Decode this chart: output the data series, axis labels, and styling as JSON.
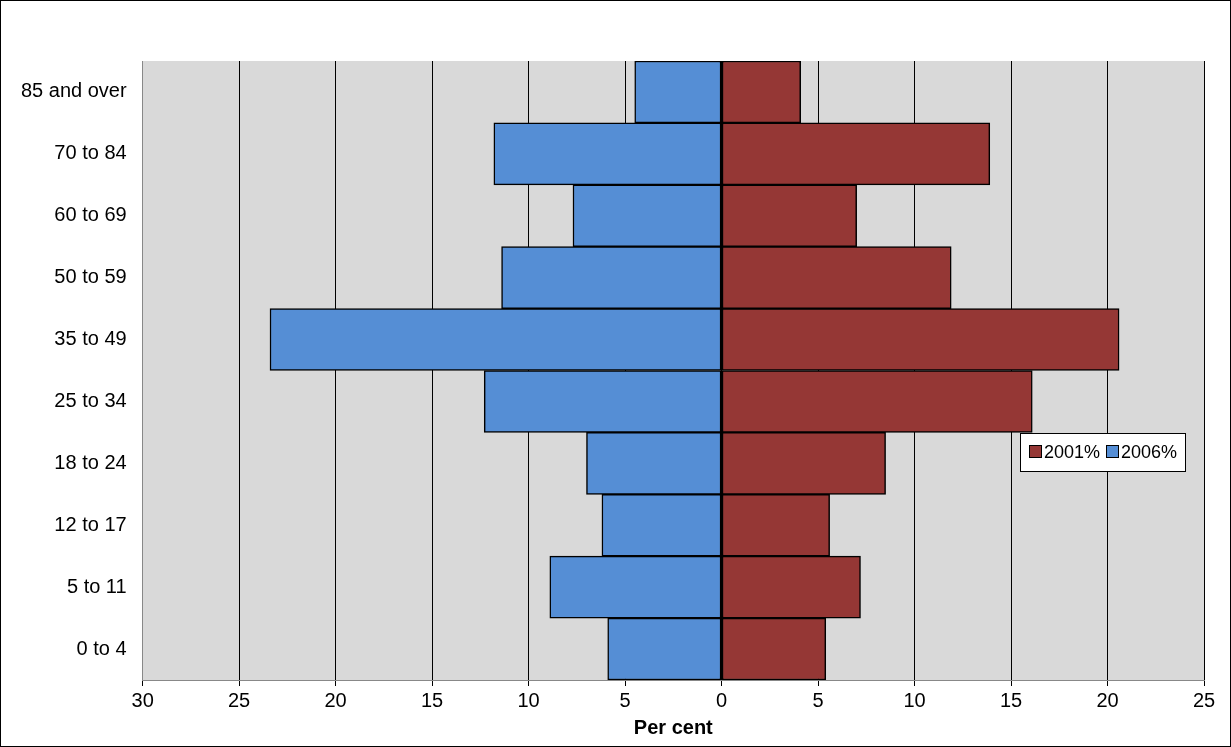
{
  "chart_data": {
    "type": "bar",
    "orientation": "horizontal",
    "stacked": true,
    "xlabel": "Per cent",
    "categories": [
      "85 and over",
      "70 to 84",
      "60 to 69",
      "50 to 59",
      "35 to 49",
      "25 to 34",
      "18 to 24",
      "12 to 17",
      "5 to 11",
      "0 to 4"
    ],
    "series": [
      {
        "name": "2001%",
        "color": "#953735",
        "values": [
          4.1,
          13.9,
          7.0,
          11.9,
          20.6,
          16.1,
          8.5,
          5.6,
          7.2,
          5.4
        ]
      },
      {
        "name": "2006%",
        "color": "#558ed5",
        "values": [
          -4.5,
          -11.8,
          -7.7,
          -11.4,
          -23.4,
          -12.3,
          -7.0,
          -6.2,
          -8.9,
          -5.9
        ]
      }
    ],
    "xlim": [
      -30,
      25
    ],
    "xticks": [
      {
        "value": -30,
        "label": "30"
      },
      {
        "value": -25,
        "label": "25"
      },
      {
        "value": -20,
        "label": "20"
      },
      {
        "value": -15,
        "label": "15"
      },
      {
        "value": -10,
        "label": "10"
      },
      {
        "value": -5,
        "label": "5"
      },
      0,
      5,
      10,
      15,
      20,
      25
    ],
    "grid": "x",
    "legend": "right"
  }
}
